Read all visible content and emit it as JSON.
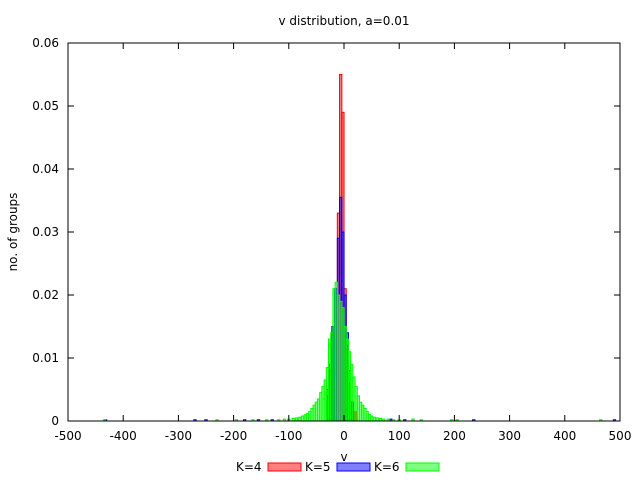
{
  "chart_data": {
    "type": "bar",
    "title": "v distribution, a=0.01",
    "xlabel": "v",
    "ylabel": "no. of groups",
    "xlim": [
      -500,
      500
    ],
    "ylim": [
      0,
      0.06
    ],
    "xticks": [
      "-500",
      "-400",
      "-300",
      "-200",
      "-100",
      "0",
      "100",
      "200",
      "300",
      "400",
      "500"
    ],
    "yticks": [
      "0",
      "0.01",
      "0.02",
      "0.03",
      "0.04",
      "0.05",
      "0.06"
    ],
    "legend_position": "bottom-center",
    "series": [
      {
        "name": "K=4",
        "color": "#ff0000",
        "points": [
          [
            -30,
            0.004
          ],
          [
            -25,
            0.008
          ],
          [
            -20,
            0.014
          ],
          [
            -15,
            0.021
          ],
          [
            -10,
            0.033
          ],
          [
            -6,
            0.055
          ],
          [
            -2,
            0.049
          ],
          [
            2,
            0.021
          ],
          [
            6,
            0.012
          ],
          [
            10,
            0.006
          ],
          [
            15,
            0.003
          ],
          [
            20,
            0.0015
          ]
        ]
      },
      {
        "name": "K=5",
        "color": "#0000ff",
        "points": [
          [
            -432,
            0.0002
          ],
          [
            -270,
            0.0002
          ],
          [
            -250,
            0.0002
          ],
          [
            -180,
            0.0002
          ],
          [
            -155,
            0.0002
          ],
          [
            -130,
            0.0002
          ],
          [
            -30,
            0.005
          ],
          [
            -25,
            0.009
          ],
          [
            -20,
            0.015
          ],
          [
            -15,
            0.021
          ],
          [
            -10,
            0.029
          ],
          [
            -6,
            0.0355
          ],
          [
            -2,
            0.03
          ],
          [
            2,
            0.02
          ],
          [
            6,
            0.014
          ],
          [
            10,
            0.008
          ],
          [
            15,
            0.003
          ],
          [
            85,
            0.0003
          ],
          [
            110,
            0.0002
          ],
          [
            235,
            0.0002
          ],
          [
            490,
            0.0002
          ]
        ]
      },
      {
        "name": "K=6",
        "color": "#00ff00",
        "points": [
          [
            -434,
            0.0002
          ],
          [
            -230,
            0.0002
          ],
          [
            -195,
            0.0002
          ],
          [
            -165,
            0.0002
          ],
          [
            -140,
            0.0002
          ],
          [
            -118,
            0.0002
          ],
          [
            -108,
            0.0003
          ],
          [
            -100,
            0.0003
          ],
          [
            -92,
            0.0004
          ],
          [
            -86,
            0.0005
          ],
          [
            -80,
            0.0006
          ],
          [
            -75,
            0.0008
          ],
          [
            -70,
            0.001
          ],
          [
            -66,
            0.0012
          ],
          [
            -62,
            0.0015
          ],
          [
            -58,
            0.002
          ],
          [
            -54,
            0.0025
          ],
          [
            -50,
            0.003
          ],
          [
            -46,
            0.0035
          ],
          [
            -42,
            0.0045
          ],
          [
            -38,
            0.0055
          ],
          [
            -34,
            0.0065
          ],
          [
            -30,
            0.0085
          ],
          [
            -26,
            0.013
          ],
          [
            -22,
            0.014
          ],
          [
            -18,
            0.021
          ],
          [
            -14,
            0.022
          ],
          [
            -10,
            0.02
          ],
          [
            -6,
            0.019
          ],
          [
            -2,
            0.018
          ],
          [
            2,
            0.015
          ],
          [
            6,
            0.013
          ],
          [
            10,
            0.011
          ],
          [
            14,
            0.009
          ],
          [
            18,
            0.007
          ],
          [
            22,
            0.0055
          ],
          [
            26,
            0.004
          ],
          [
            30,
            0.003
          ],
          [
            34,
            0.0025
          ],
          [
            38,
            0.002
          ],
          [
            42,
            0.0015
          ],
          [
            46,
            0.001
          ],
          [
            50,
            0.0008
          ],
          [
            55,
            0.0006
          ],
          [
            60,
            0.0005
          ],
          [
            66,
            0.0004
          ],
          [
            72,
            0.0003
          ],
          [
            80,
            0.0003
          ],
          [
            90,
            0.0002
          ],
          [
            100,
            0.0002
          ],
          [
            125,
            0.0003
          ],
          [
            140,
            0.0002
          ],
          [
            195,
            0.0002
          ],
          [
            205,
            0.0002
          ],
          [
            465,
            0.0002
          ]
        ]
      }
    ]
  }
}
